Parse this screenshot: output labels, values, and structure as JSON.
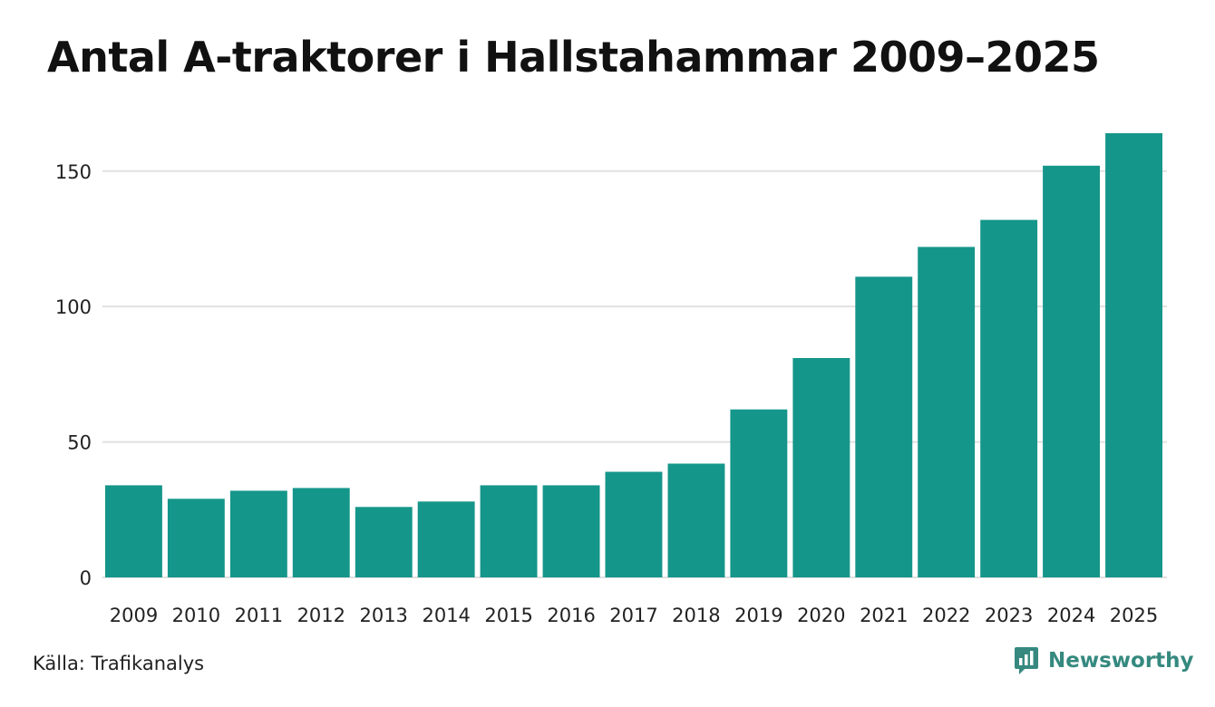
{
  "title": "Antal A-traktorer i Hallstahammar 2009–2025",
  "source": "Källa: Trafikanalys",
  "brand": "Newsworthy",
  "colors": {
    "bar": "#15968a",
    "grid": "#e1e1e1",
    "brand": "#35897f"
  },
  "chart_data": {
    "type": "bar",
    "title": "Antal A-traktorer i Hallstahammar 2009–2025",
    "xlabel": "",
    "ylabel": "",
    "categories": [
      "2009",
      "2010",
      "2011",
      "2012",
      "2013",
      "2014",
      "2015",
      "2016",
      "2017",
      "2018",
      "2019",
      "2020",
      "2021",
      "2022",
      "2023",
      "2024",
      "2025"
    ],
    "values": [
      34,
      29,
      32,
      33,
      26,
      28,
      34,
      34,
      39,
      42,
      62,
      81,
      111,
      122,
      132,
      152,
      164
    ],
    "yticks": [
      0,
      50,
      100,
      150
    ],
    "ylim": [
      0,
      170
    ],
    "grid": true
  }
}
